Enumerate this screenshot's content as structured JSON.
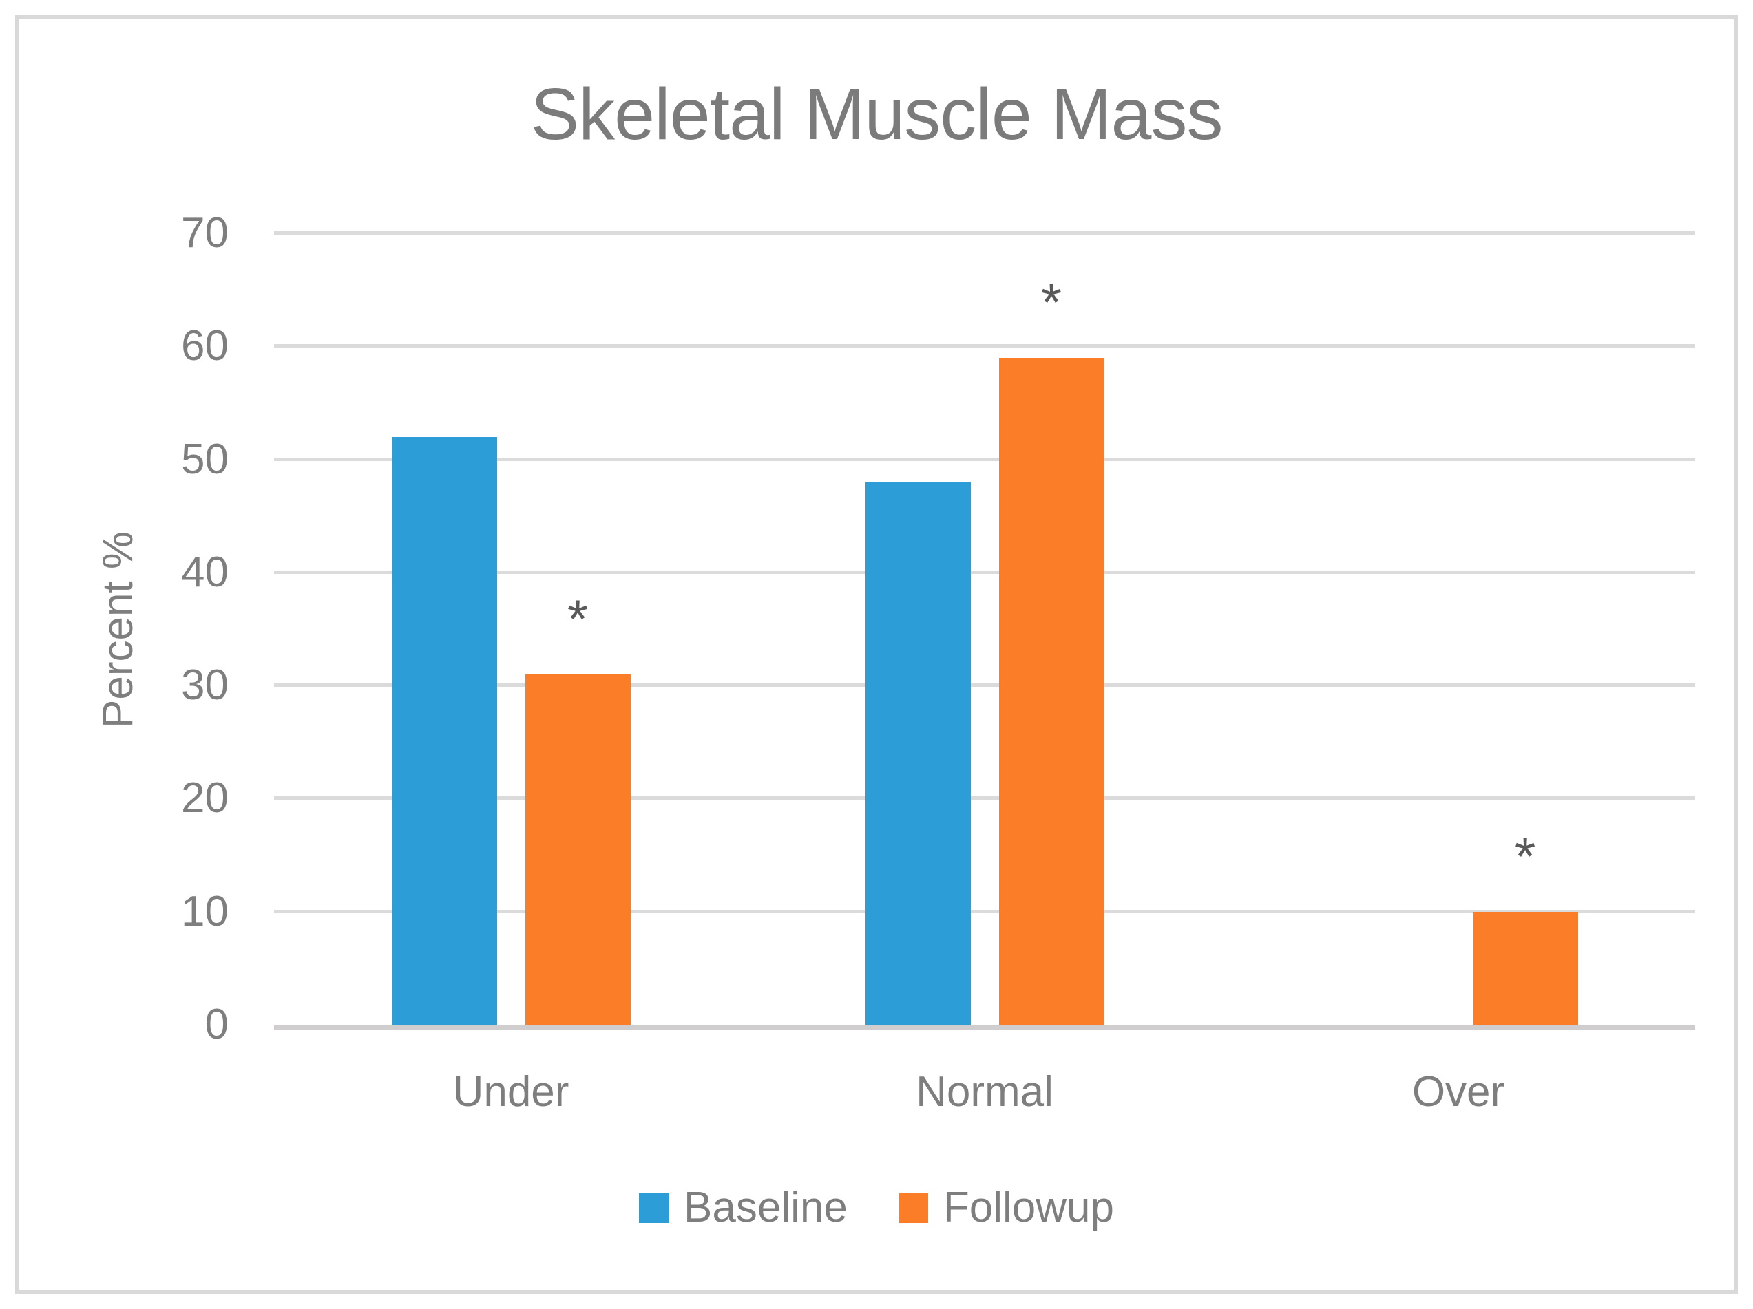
{
  "title": "Skeletal Muscle Mass",
  "chart_data": {
    "type": "bar",
    "title": "Skeletal Muscle Mass",
    "categories": [
      "Under",
      "Normal",
      "Over"
    ],
    "series": [
      {
        "name": "Baseline",
        "color": "#2d9dd7",
        "values": [
          52,
          48,
          0
        ]
      },
      {
        "name": "Followup",
        "color": "#fb7d27",
        "values": [
          31,
          59,
          10
        ],
        "annotations": [
          "*",
          "*",
          "*"
        ]
      }
    ],
    "xlabel": "",
    "ylabel": "Percent %",
    "ylim": [
      0,
      70
    ],
    "yticks": [
      0,
      10,
      20,
      30,
      40,
      50,
      60,
      70
    ],
    "grid": true,
    "legend_position": "bottom",
    "annotation_symbol_color": "#595959",
    "gridline_color": "#dbdbdb",
    "axis_line_color": "#cfcdcd",
    "text_color": "#7e7e7e",
    "frame_border_color": "#d9d9d9"
  }
}
